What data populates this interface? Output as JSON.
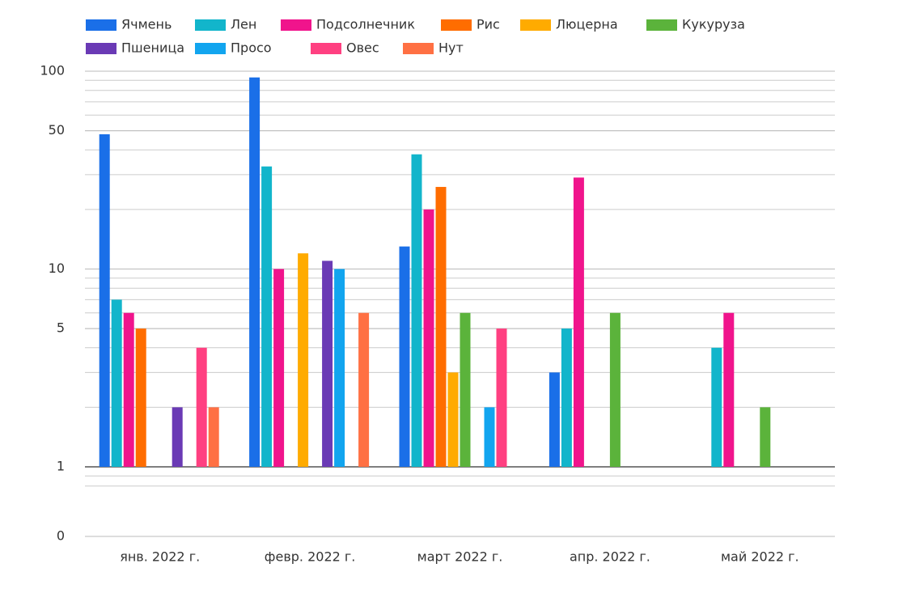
{
  "chart_data": {
    "type": "bar",
    "log_scale": true,
    "grid": true,
    "legend": "top",
    "categories": [
      "янв. 2022 г.",
      "февр. 2022 г.",
      "март 2022 г.",
      "апр. 2022 г.",
      "май 2022 г."
    ],
    "series": [
      {
        "name": "Ячмень",
        "color": "#1a6fe8",
        "values": [
          48,
          93,
          13,
          3,
          null
        ]
      },
      {
        "name": "Лен",
        "color": "#12b5cb",
        "values": [
          7,
          33,
          38,
          5,
          4
        ]
      },
      {
        "name": "Подсолнечник",
        "color": "#f0148c",
        "values": [
          6,
          10,
          20,
          29,
          6
        ]
      },
      {
        "name": "Рис",
        "color": "#ff6d00",
        "values": [
          5,
          null,
          26,
          null,
          null
        ]
      },
      {
        "name": "Люцерна",
        "color": "#ffab00",
        "values": [
          null,
          12,
          3,
          null,
          null
        ]
      },
      {
        "name": "Кукуруза",
        "color": "#5bb33b",
        "values": [
          null,
          null,
          6,
          6,
          2
        ]
      },
      {
        "name": "Пшеница",
        "color": "#6a3ab5",
        "values": [
          2,
          11,
          null,
          null,
          null
        ]
      },
      {
        "name": "Просо",
        "color": "#12a5ef",
        "values": [
          null,
          10,
          2,
          null,
          null
        ]
      },
      {
        "name": "Овес",
        "color": "#ff4081",
        "values": [
          4,
          null,
          5,
          null,
          null
        ]
      },
      {
        "name": "Нут",
        "color": "#ff7043",
        "values": [
          2,
          6,
          null,
          null,
          null
        ]
      }
    ],
    "ylim": [
      0,
      100
    ],
    "yticks": [
      0,
      1,
      5,
      10,
      50,
      100
    ]
  }
}
